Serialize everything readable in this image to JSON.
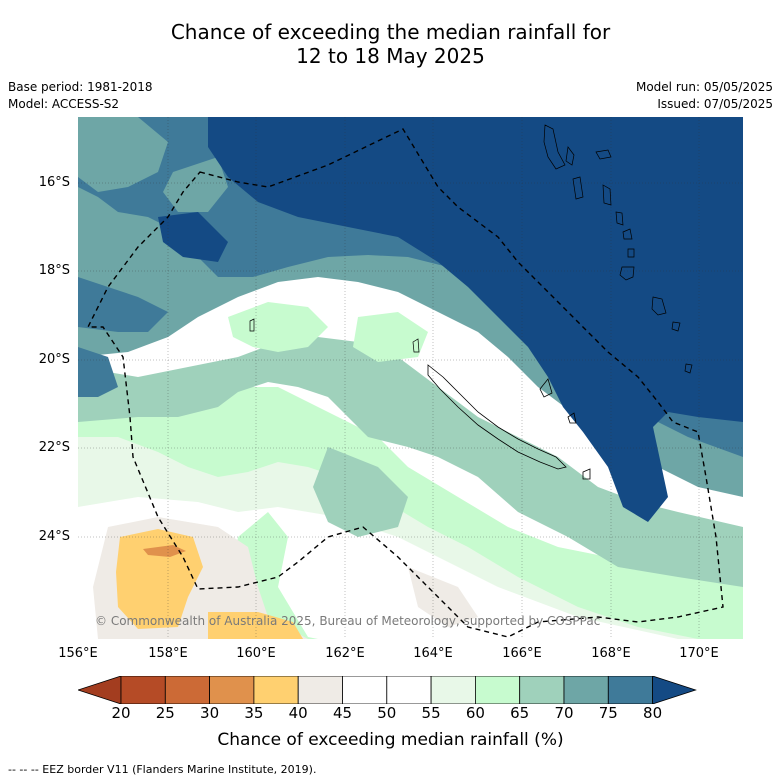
{
  "title": {
    "line1": "Chance of exceeding the median rainfall for",
    "line2": "12 to 18 May 2025"
  },
  "meta_left": {
    "base_period": "Base period: 1981-2018",
    "model": "Model: ACCESS-S2"
  },
  "meta_right": {
    "model_run": "Model run: 05/05/2025",
    "issued": "Issued: 07/05/2025"
  },
  "map": {
    "lon_range": [
      156,
      171
    ],
    "lat_range": [
      -14.75,
      -26.5
    ],
    "lat_ticks": [
      "16°S",
      "18°S",
      "20°S",
      "22°S",
      "24°S"
    ],
    "lon_ticks": [
      "156°E",
      "158°E",
      "160°E",
      "162°E",
      "164°E",
      "166°E",
      "168°E",
      "170°E"
    ],
    "copyright": "© Commonwealth of Australia 2025, Bureau of Meteorology, supported by COSPPac"
  },
  "colorbar": {
    "title": "Chance of exceeding median rainfall (%)",
    "labels": [
      "20",
      "25",
      "30",
      "35",
      "40",
      "45",
      "50",
      "55",
      "60",
      "65",
      "70",
      "75",
      "80"
    ],
    "colors": [
      "#a33d1f",
      "#b54b26",
      "#cc6a36",
      "#e0914c",
      "#ffd070",
      "#efebe6",
      "#ffffff",
      "#ffffff",
      "#e8f8e8",
      "#c7fbcf",
      "#9fd1bb",
      "#6ea6a6",
      "#3f7a99",
      "#144a84"
    ]
  },
  "footer": "--  --  -- EEZ border V11 (Flanders Marine Institute, 2019)."
}
